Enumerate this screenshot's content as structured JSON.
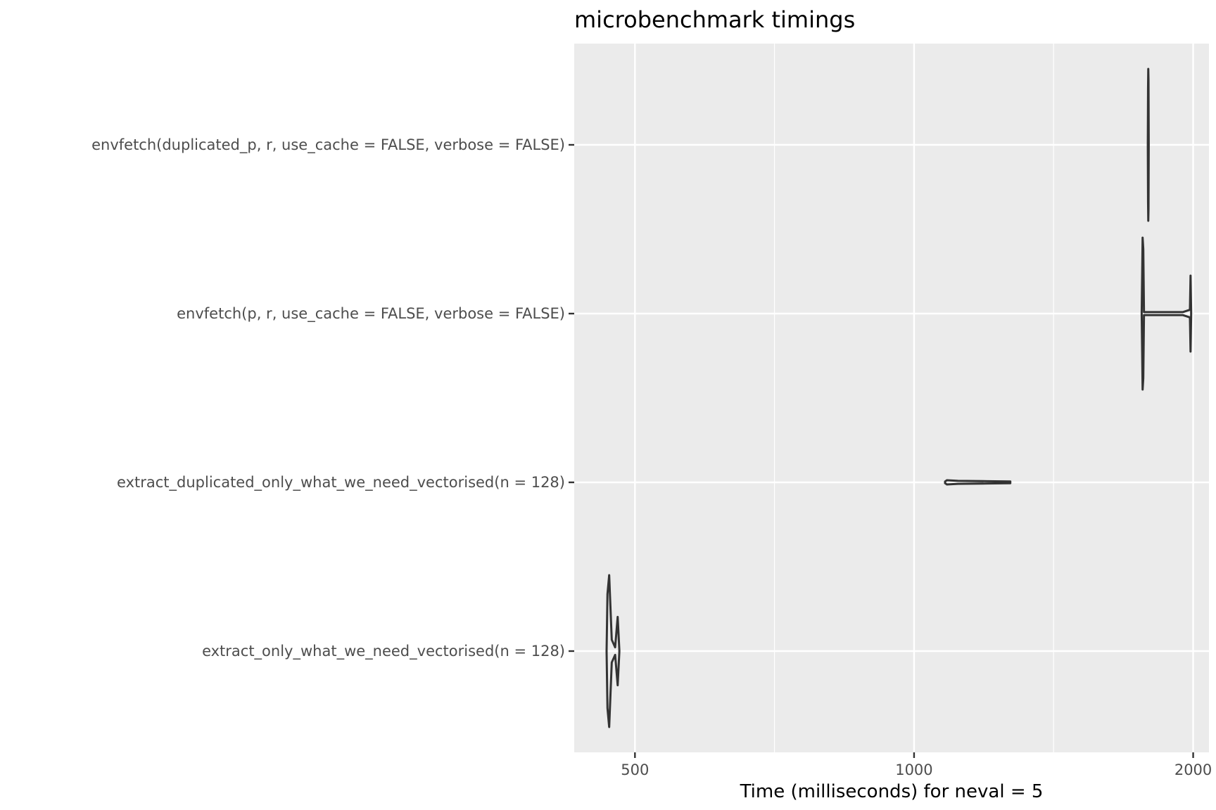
{
  "chart_data": {
    "type": "violin",
    "title": "microbenchmark timings",
    "xlabel": "Time (milliseconds) for neval = 5",
    "ylabel": "",
    "x_scale": "log10",
    "xlim": [
      430,
      2080
    ],
    "x_ticks": [
      500,
      1000,
      2000
    ],
    "x_tick_labels": [
      "500",
      "1000",
      "2000"
    ],
    "x_minor_ticks": [
      707,
      1414
    ],
    "grid": true,
    "categories": [
      "envfetch(duplicated_p, r, use_cache = FALSE, verbose = FALSE)",
      "envfetch(p, r, use_cache = FALSE, verbose = FALSE)",
      "extract_duplicated_only_what_we_need_vectorised(n = 128)",
      "extract_only_what_we_need_vectorised(n = 128)"
    ],
    "violins": [
      {
        "category": "envfetch(duplicated_p, r, use_cache = FALSE, verbose = FALSE)",
        "min": 1787,
        "max": 1791,
        "profile": [
          [
            1787,
            0.0
          ],
          [
            1788,
            0.75
          ],
          [
            1789,
            1.0
          ],
          [
            1790,
            0.85
          ],
          [
            1791,
            0.0
          ]
        ]
      },
      {
        "category": "envfetch(p, r, use_cache = FALSE, verbose = FALSE)",
        "min": 1760,
        "max": 1990,
        "profile": [
          [
            1760,
            0.0
          ],
          [
            1762,
            0.5
          ],
          [
            1764,
            1.0
          ],
          [
            1767,
            0.85
          ],
          [
            1770,
            0.02
          ],
          [
            1950,
            0.02
          ],
          [
            1984,
            0.05
          ],
          [
            1987,
            0.5
          ],
          [
            1990,
            0.0
          ]
        ]
      },
      {
        "category": "extract_duplicated_only_what_we_need_vectorised(n = 128)",
        "min": 1080,
        "max": 1270,
        "profile": [
          [
            1080,
            0.0
          ],
          [
            1085,
            0.028
          ],
          [
            1115,
            0.02
          ],
          [
            1200,
            0.015
          ],
          [
            1270,
            0.0
          ]
        ]
      },
      {
        "category": "extract_only_what_we_need_vectorised(n = 128)",
        "min": 466,
        "max": 481,
        "profile": [
          [
            466,
            0.0
          ],
          [
            467,
            0.75
          ],
          [
            469,
            1.0
          ],
          [
            472,
            0.15
          ],
          [
            476,
            0.05
          ],
          [
            479,
            0.45
          ],
          [
            481,
            0.0
          ]
        ]
      }
    ]
  }
}
